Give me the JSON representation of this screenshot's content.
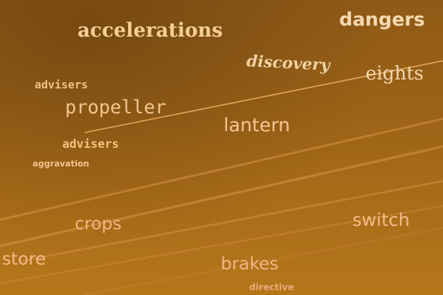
{
  "scene": {
    "description_colors": {
      "sky_top": "#8f5a16",
      "sky_bottom": "#b5761a",
      "contrail": "#e0a05a"
    }
  },
  "words": {
    "accelerations": "accelerations",
    "dangers": "dangers",
    "discovery": "discovery",
    "eights": "eights",
    "advisers_1": "advisers",
    "propeller": "propeller",
    "lantern": "lantern",
    "advisers_2": "advisers",
    "aggravation": "aggravation",
    "crops": "crops",
    "switch": "switch",
    "store": "store",
    "brakes": "brakes",
    "directive": "directive"
  }
}
